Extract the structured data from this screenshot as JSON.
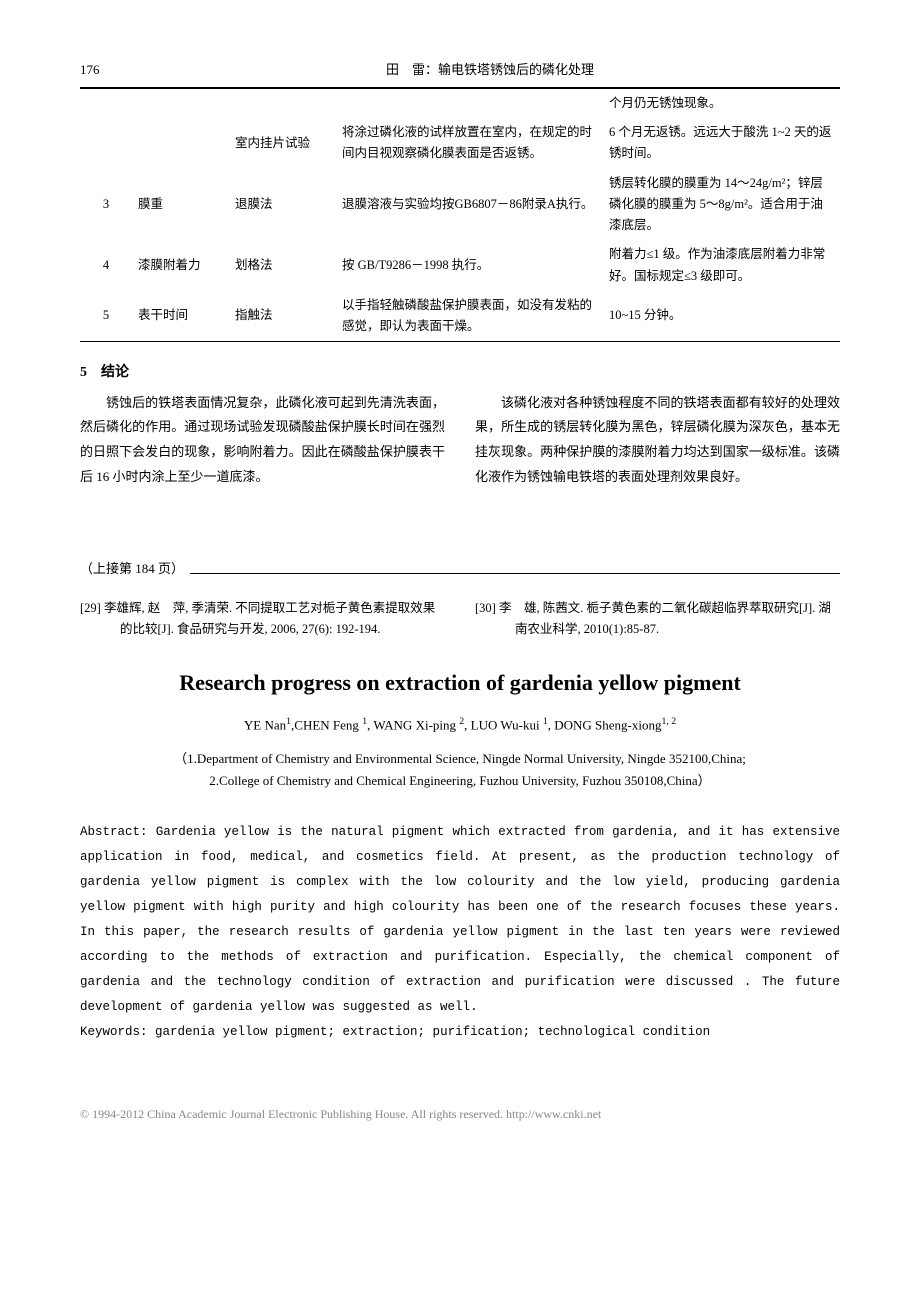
{
  "header": {
    "pageNumber": "176",
    "title": "田　雷：输电铁塔锈蚀后的磷化处理"
  },
  "table": {
    "rows": [
      {
        "c1": "",
        "c2": "",
        "c3": "",
        "c4": "",
        "c5": "个月仍无锈蚀现象。"
      },
      {
        "c1": "",
        "c2": "",
        "c3": "室内挂片试验",
        "c4": "将涂过磷化液的试样放置在室内，在规定的时间内目视观察磷化膜表面是否返锈。",
        "c5": "6 个月无返锈。远远大于酸洗 1~2 天的返锈时间。"
      },
      {
        "c1": "3",
        "c2": "膜重",
        "c3": "退膜法",
        "c4": "退膜溶液与实验均按GB6807－86附录A执行。",
        "c5": "锈层转化膜的膜重为 14～24g/m²；锌层磷化膜的膜重为 5～8g/m²。适合用于油漆底层。"
      },
      {
        "c1": "4",
        "c2": "漆膜附着力",
        "c3": "划格法",
        "c4": "按 GB/T9286－1998 执行。",
        "c5": "附着力≤1 级。作为油漆底层附着力非常好。国标规定≤3 级即可。"
      },
      {
        "c1": "5",
        "c2": "表干时间",
        "c3": "指触法",
        "c4": "以手指轻触磷酸盐保护膜表面，如没有发粘的感觉，即认为表面干燥。",
        "c5": "10~15 分钟。"
      }
    ]
  },
  "conclusion": {
    "heading": "5　结论",
    "left": "锈蚀后的铁塔表面情况复杂，此磷化液可起到先清洗表面，然后磷化的作用。通过现场试验发现磷酸盐保护膜长时间在强烈的日照下会发白的现象，影响附着力。因此在磷酸盐保护膜表干后 16 小时内涂上至少一道底漆。",
    "right": "该磷化液对各种锈蚀程度不同的铁塔表面都有较好的处理效果，所生成的锈层转化膜为黑色，锌层磷化膜为深灰色，基本无挂灰现象。两种保护膜的漆膜附着力均达到国家一级标准。该磷化液作为锈蚀输电铁塔的表面处理剂效果良好。"
  },
  "continuation": {
    "label": "（上接第 184 页）"
  },
  "refs": {
    "left": "[29] 李雄辉, 赵　萍, 季清荣. 不同提取工艺对栀子黄色素提取效果的比较[J]. 食品研究与开发, 2006, 27(6): 192-194.",
    "right": "[30] 李　雄, 陈茜文. 栀子黄色素的二氧化碳超临界萃取研究[J]. 湖南农业科学, 2010(1):85-87."
  },
  "english": {
    "title": "Research progress on extraction of gardenia yellow pigment",
    "authors_html": "YE Nan<sup>1</sup>,CHEN Feng <sup>1</sup>, WANG Xi-ping <sup>2</sup>, LUO Wu-kui <sup>1</sup>, DONG Sheng-xiong<sup>1, 2</sup>",
    "affil1": "（1.Department of Chemistry and Environmental Science, Ningde Normal University, Ningde 352100,China;",
    "affil2": "2.College of Chemistry and Chemical Engineering, Fuzhou University, Fuzhou 350108,China）",
    "abstractLabel": "Abstract:",
    "abstractText": " Gardenia yellow is the natural pigment which extracted from gardenia, and it has extensive application in food, medical, and cosmetics field. At present, as the production technology of gardenia yellow pigment is complex with the low colourity and the low yield, producing gardenia yellow pigment with high purity and high colourity has been one of the research focuses these years. In this paper, the research results of gardenia yellow pigment in the last ten years were reviewed according to the methods of extraction and purification. Especially, the chemical component of gardenia and the technology condition of extraction and purification were discussed . The future development of gardenia yellow was suggested as well.",
    "keywordsLabel": "Keywords:",
    "keywordsText": "  gardenia yellow pigment; extraction; purification; technological condition"
  },
  "footer": {
    "text": "© 1994-2012 China Academic Journal Electronic Publishing House. All rights reserved.    http://www.cnki.net"
  }
}
